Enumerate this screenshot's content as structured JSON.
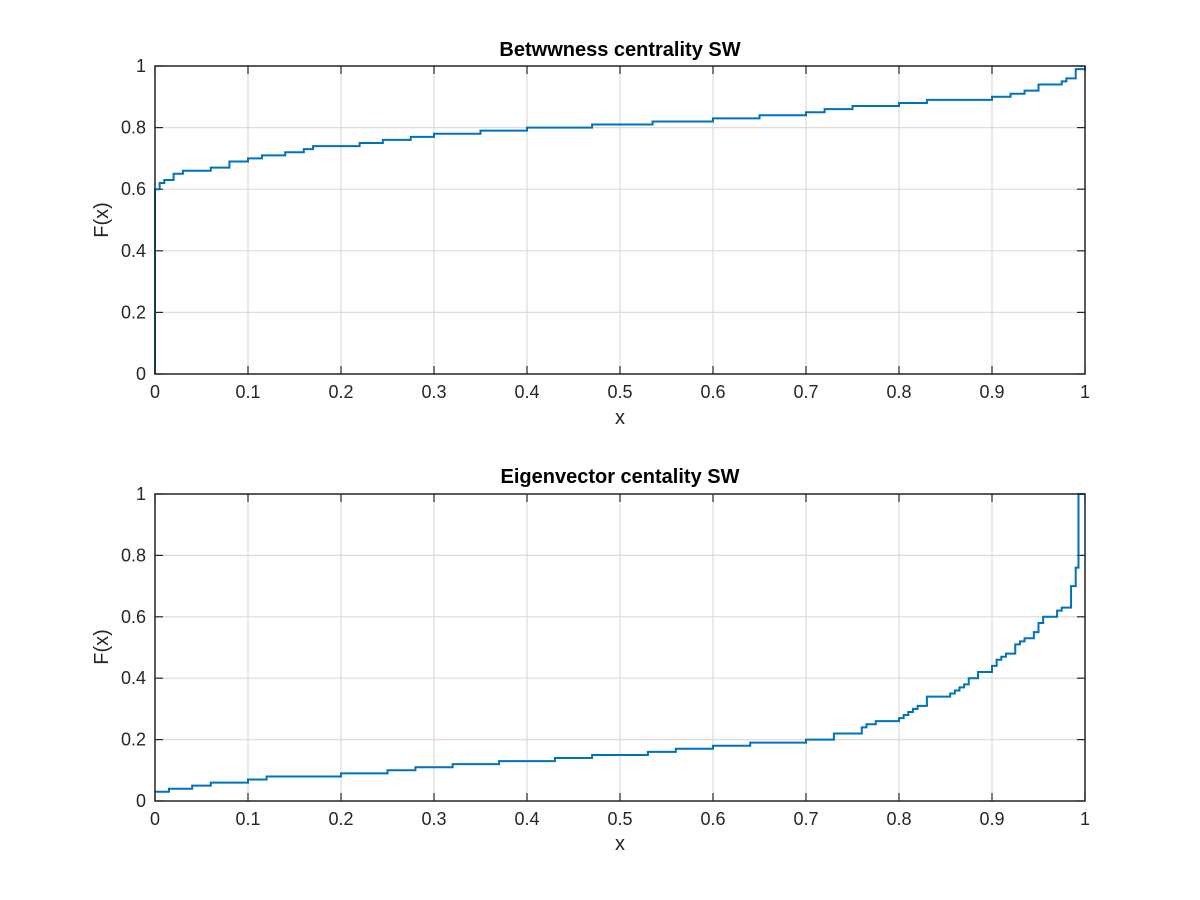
{
  "chart_data": [
    {
      "type": "line",
      "title": "Betwwness centrality SW",
      "xlabel": "x",
      "ylabel": "F(x)",
      "xlim": [
        0,
        1
      ],
      "ylim": [
        0,
        1
      ],
      "xticks": [
        "0",
        "0.1",
        "0.2",
        "0.3",
        "0.4",
        "0.5",
        "0.6",
        "0.7",
        "0.8",
        "0.9",
        "1"
      ],
      "yticks": [
        "0",
        "0.2",
        "0.4",
        "0.6",
        "0.8",
        "1"
      ],
      "grid": true,
      "color": "#0072bd",
      "series": [
        {
          "step": true,
          "x": [
            0,
            0,
            0.005,
            0.01,
            0.02,
            0.03,
            0.045,
            0.06,
            0.08,
            0.1,
            0.115,
            0.14,
            0.16,
            0.17,
            0.2,
            0.22,
            0.245,
            0.275,
            0.3,
            0.33,
            0.35,
            0.38,
            0.4,
            0.43,
            0.47,
            0.5,
            0.535,
            0.57,
            0.6,
            0.65,
            0.675,
            0.7,
            0.72,
            0.75,
            0.78,
            0.8,
            0.83,
            0.85,
            0.88,
            0.9,
            0.92,
            0.935,
            0.95,
            0.965,
            0.975,
            0.98,
            0.99,
            1
          ],
          "y": [
            0,
            0.6,
            0.62,
            0.63,
            0.65,
            0.66,
            0.66,
            0.67,
            0.69,
            0.7,
            0.71,
            0.72,
            0.73,
            0.74,
            0.74,
            0.75,
            0.76,
            0.77,
            0.78,
            0.78,
            0.79,
            0.79,
            0.8,
            0.8,
            0.81,
            0.81,
            0.82,
            0.82,
            0.83,
            0.84,
            0.84,
            0.85,
            0.86,
            0.87,
            0.87,
            0.88,
            0.89,
            0.89,
            0.89,
            0.9,
            0.91,
            0.92,
            0.94,
            0.94,
            0.95,
            0.96,
            0.99,
            1
          ]
        }
      ]
    },
    {
      "type": "line",
      "title": "Eigenvector centality SW",
      "xlabel": "x",
      "ylabel": "F(x)",
      "xlim": [
        0,
        1
      ],
      "ylim": [
        0,
        1
      ],
      "xticks": [
        "0",
        "0.1",
        "0.2",
        "0.3",
        "0.4",
        "0.5",
        "0.6",
        "0.7",
        "0.8",
        "0.9",
        "1"
      ],
      "yticks": [
        "0",
        "0.2",
        "0.4",
        "0.6",
        "0.8",
        "1"
      ],
      "grid": true,
      "color": "#0072bd",
      "series": [
        {
          "step": true,
          "x": [
            0,
            0.015,
            0.04,
            0.06,
            0.1,
            0.12,
            0.2,
            0.25,
            0.28,
            0.32,
            0.37,
            0.43,
            0.47,
            0.53,
            0.56,
            0.6,
            0.64,
            0.7,
            0.73,
            0.76,
            0.765,
            0.775,
            0.8,
            0.805,
            0.81,
            0.815,
            0.82,
            0.83,
            0.855,
            0.86,
            0.865,
            0.87,
            0.875,
            0.885,
            0.9,
            0.905,
            0.91,
            0.915,
            0.925,
            0.93,
            0.935,
            0.945,
            0.95,
            0.955,
            0.97,
            0.975,
            0.985,
            0.99,
            0.993,
            1
          ],
          "y": [
            0.03,
            0.04,
            0.05,
            0.06,
            0.07,
            0.08,
            0.09,
            0.1,
            0.11,
            0.12,
            0.13,
            0.14,
            0.15,
            0.16,
            0.17,
            0.18,
            0.19,
            0.2,
            0.22,
            0.24,
            0.25,
            0.26,
            0.27,
            0.28,
            0.29,
            0.3,
            0.31,
            0.34,
            0.35,
            0.36,
            0.37,
            0.38,
            0.4,
            0.42,
            0.44,
            0.46,
            0.47,
            0.48,
            0.51,
            0.52,
            0.53,
            0.55,
            0.58,
            0.6,
            0.62,
            0.63,
            0.7,
            0.76,
            1.0,
            1.0
          ]
        }
      ]
    }
  ]
}
